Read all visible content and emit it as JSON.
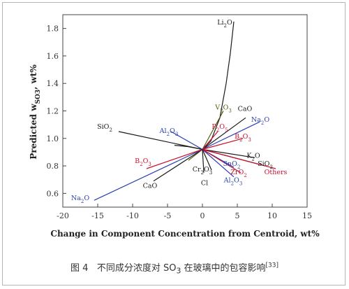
{
  "chart_data": {
    "type": "line",
    "title": "",
    "xlabel": "Change in Component Concentration from Centroid, wt%",
    "ylabel": {
      "main": "Predicted w",
      "sub": "SO3",
      "tail": ", wt%"
    },
    "xlim": [
      -20,
      15
    ],
    "ylim": [
      0.5,
      1.9
    ],
    "xticks": [
      "-20",
      "-15",
      "-10",
      "-5",
      "0",
      "5",
      "10",
      "15"
    ],
    "yticks": [
      "0.6",
      "0.8",
      "1.0",
      "1.2",
      "1.4",
      "1.6",
      "1.8"
    ],
    "centroid": [
      0,
      0.92
    ],
    "colors": {
      "black": "#1a1a1a",
      "red": "#c8102e",
      "blue": "#2b3fb0",
      "olive": "#5a5a12"
    },
    "series": [
      {
        "name": "Li",
        "sub": "2",
        "tail": "O",
        "color": "black",
        "x": [
          -4,
          -2,
          0,
          1.2,
          2.5,
          3.4,
          4.0,
          4.5
        ],
        "y": [
          0.95,
          0.94,
          0.92,
          0.98,
          1.15,
          1.4,
          1.62,
          1.85
        ]
      },
      {
        "name": "V",
        "sub": "2",
        "tail": "O3",
        "color": "olive",
        "x": [
          -2,
          0,
          1.5,
          3.0
        ],
        "y": [
          0.84,
          0.92,
          1.06,
          1.2
        ]
      },
      {
        "name": "CaO",
        "sub": "",
        "tail": "",
        "color": "black",
        "x": [
          -7,
          0,
          6.2
        ],
        "y": [
          0.69,
          0.92,
          1.15
        ]
      },
      {
        "name": "Na",
        "sub": "2",
        "tail": "O",
        "color": "blue",
        "x": [
          -15.5,
          0,
          8.2
        ],
        "y": [
          0.55,
          0.92,
          1.12
        ]
      },
      {
        "name": "P",
        "sub": "2",
        "tail": "O5",
        "color": "red",
        "x": [
          0,
          2.2
        ],
        "y": [
          0.92,
          1.05
        ]
      },
      {
        "name": "B",
        "sub": "2",
        "tail": "O3",
        "color": "red",
        "x": [
          -8,
          0,
          5.8
        ],
        "y": [
          0.78,
          0.92,
          1.0
        ]
      },
      {
        "name": "SiO",
        "sub": "2",
        "tail": "",
        "color": "black",
        "x": [
          -12,
          0,
          9.0
        ],
        "y": [
          1.05,
          0.92,
          0.8
        ]
      },
      {
        "name": "Al",
        "sub": "2",
        "tail": "O3",
        "color": "blue",
        "x": [
          -4.5,
          0,
          4.5
        ],
        "y": [
          1.05,
          0.92,
          0.72
        ]
      },
      {
        "name": "K",
        "sub": "2",
        "tail": "O",
        "color": "black",
        "x": [
          0,
          7.5
        ],
        "y": [
          0.92,
          0.86
        ]
      },
      {
        "name": "Others",
        "sub": "",
        "tail": "",
        "color": "red",
        "x": [
          0,
          10.5
        ],
        "y": [
          0.92,
          0.78
        ]
      },
      {
        "name": "SnO",
        "sub": "2",
        "tail": "",
        "color": "blue",
        "x": [
          0,
          4.5
        ],
        "y": [
          0.92,
          0.79
        ]
      },
      {
        "name": "ZrO",
        "sub": "2",
        "tail": "",
        "color": "red",
        "x": [
          0,
          5.5
        ],
        "y": [
          0.92,
          0.75
        ]
      },
      {
        "name": "Cr",
        "sub": "2",
        "tail": "O3",
        "color": "black",
        "x": [
          0,
          1.3
        ],
        "y": [
          0.92,
          0.77
        ]
      },
      {
        "name": "Cl",
        "sub": "",
        "tail": "",
        "color": "black",
        "x": [
          0,
          0.2
        ],
        "y": [
          0.92,
          0.75
        ]
      }
    ],
    "labels": [
      {
        "text": "Li",
        "sub": "2",
        "tail": "O",
        "x": 3.2,
        "y": 1.83,
        "color": "black"
      },
      {
        "text": "V",
        "sub": "2",
        "tail": "O",
        "sub2": "3",
        "x": 3.0,
        "y": 1.21,
        "color": "olive"
      },
      {
        "text": "CaO",
        "sub": "",
        "tail": "",
        "x": 6.1,
        "y": 1.2,
        "color": "black"
      },
      {
        "text": "Na",
        "sub": "2",
        "tail": "O",
        "x": 8.3,
        "y": 1.12,
        "color": "blue"
      },
      {
        "text": "P",
        "sub": "2",
        "tail": "O",
        "sub2": "5",
        "x": 2.5,
        "y": 1.07,
        "color": "red"
      },
      {
        "text": "B",
        "sub": "2",
        "tail": "O",
        "sub2": "3",
        "x": 5.8,
        "y": 1.0,
        "color": "red"
      },
      {
        "text": "SiO",
        "sub": "2",
        "tail": "",
        "x": -14.0,
        "y": 1.07,
        "color": "black"
      },
      {
        "text": "Al",
        "sub": "2",
        "tail": "O",
        "sub2": "3",
        "x": -4.8,
        "y": 1.04,
        "color": "blue"
      },
      {
        "text": "K",
        "sub": "2",
        "tail": "O",
        "x": 7.3,
        "y": 0.86,
        "color": "black"
      },
      {
        "text": "SiO",
        "sub": "2",
        "tail": "",
        "x": 9.0,
        "y": 0.8,
        "color": "black"
      },
      {
        "text": "Others",
        "sub": "",
        "tail": "",
        "x": 10.5,
        "y": 0.74,
        "color": "red"
      },
      {
        "text": "SnO",
        "sub": "2",
        "tail": "",
        "x": 4.2,
        "y": 0.8,
        "color": "blue"
      },
      {
        "text": "ZrO",
        "sub": "2",
        "tail": "",
        "x": 5.2,
        "y": 0.74,
        "color": "red"
      },
      {
        "text": "Al",
        "sub": "2",
        "tail": "O",
        "sub2": "3",
        "x": 4.4,
        "y": 0.68,
        "color": "blue"
      },
      {
        "text": "B",
        "sub": "2",
        "tail": "O",
        "sub2": "3",
        "x": -8.5,
        "y": 0.82,
        "color": "red"
      },
      {
        "text": "Cr",
        "sub": "2",
        "tail": "O",
        "sub2": "3",
        "x": 0.0,
        "y": 0.76,
        "color": "black"
      },
      {
        "text": "Cl",
        "sub": "",
        "tail": "",
        "x": 0.3,
        "y": 0.66,
        "color": "black"
      },
      {
        "text": "CaO",
        "sub": "",
        "tail": "",
        "x": -7.5,
        "y": 0.64,
        "color": "black"
      },
      {
        "text": "Na",
        "sub": "2",
        "tail": "O",
        "x": -17.5,
        "y": 0.55,
        "color": "blue"
      }
    ]
  },
  "caption": {
    "fig": "图 4",
    "text": "不同成分浓度对 SO",
    "sub": "3",
    "tail": " 在玻璃中的包容影响",
    "ref": "[33]"
  }
}
